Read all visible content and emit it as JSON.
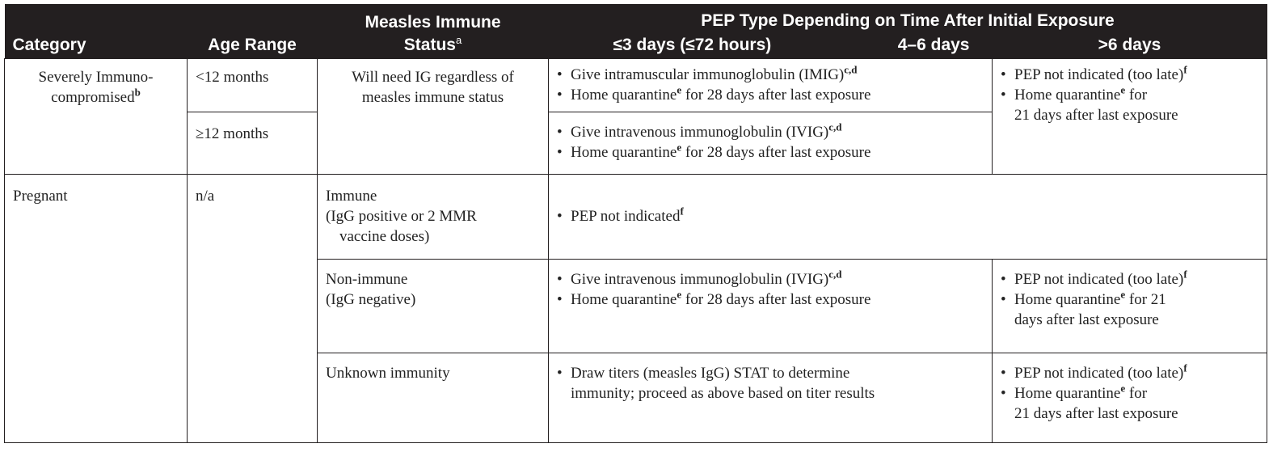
{
  "header": {
    "category": "Category",
    "age_range": "Age Range",
    "immune_status_line1": "Measles Immune",
    "immune_status_line2": "Status",
    "immune_status_sup": "a",
    "pep_group": "PEP Type Depending on Time After Initial Exposure",
    "col_le3": "≤3 days (≤72 hours)",
    "col_4_6": "4–6 days",
    "col_gt6": ">6 days"
  },
  "rows": {
    "immuno": {
      "category_line1": "Severely Immuno-",
      "category_line2": "compromised",
      "category_sup": "b",
      "age_lt12": "<12 months",
      "age_ge12": "≥12 months",
      "status_line1": "Will need IG regardless of",
      "status_line2": "measles immune status",
      "lt12_b1_text": "Give intramuscular immunoglobulin (IMIG)",
      "lt12_b1_sup": "c,d",
      "lt12_b2_pre": "Home quarantine",
      "lt12_b2_sup": "e",
      "lt12_b2_post": " for 28 days after last exposure",
      "ge12_b1_text": "Give intravenous immunoglobulin (IVIG)",
      "ge12_b1_sup": "c,d",
      "ge12_b2_pre": "Home quarantine",
      "ge12_b2_sup": "e",
      "ge12_b2_post": " for 28 days after last exposure",
      "gt6_b1_text": "PEP not indicated (too late)",
      "gt6_b1_sup": "f",
      "gt6_b2_pre": "Home quarantine",
      "gt6_b2_sup": "e",
      "gt6_b2_post": " for",
      "gt6_b2_line2": "21 days after last exposure"
    },
    "pregnant": {
      "category": "Pregnant",
      "age": "n/a",
      "immune_status_line1": "Immune",
      "immune_status_line2": "(IgG positive or 2 MMR",
      "immune_status_line3": "vaccine doses)",
      "immune_b1_text": "PEP not indicated",
      "immune_b1_sup": "f",
      "nonimmune_status_line1": "Non-immune",
      "nonimmune_status_line2": "(IgG negative)",
      "nonimmune_b1_text": "Give intravenous immunoglobulin (IVIG)",
      "nonimmune_b1_sup": "c,d",
      "nonimmune_b2_pre": "Home quarantine",
      "nonimmune_b2_sup": "e",
      "nonimmune_b2_post": " for 28 days after last exposure",
      "nonimmune_gt6_b1_text": "PEP not indicated (too late)",
      "nonimmune_gt6_b1_sup": "f",
      "nonimmune_gt6_b2_pre": "Home quarantine",
      "nonimmune_gt6_b2_sup": "e",
      "nonimmune_gt6_b2_post": " for 21",
      "nonimmune_gt6_b2_line2": "days after last exposure",
      "unknown_status": "Unknown immunity",
      "unknown_b1_line1": "Draw titers (measles IgG) STAT to determine",
      "unknown_b1_line2": "immunity; proceed as above based on titer results",
      "unknown_gt6_b1_text": "PEP not indicated (too late)",
      "unknown_gt6_b1_sup": "f",
      "unknown_gt6_b2_pre": "Home quarantine",
      "unknown_gt6_b2_sup": "e",
      "unknown_gt6_b2_post": " for",
      "unknown_gt6_b2_line2": "21 days after last exposure"
    }
  },
  "bullet_glyph": "•"
}
